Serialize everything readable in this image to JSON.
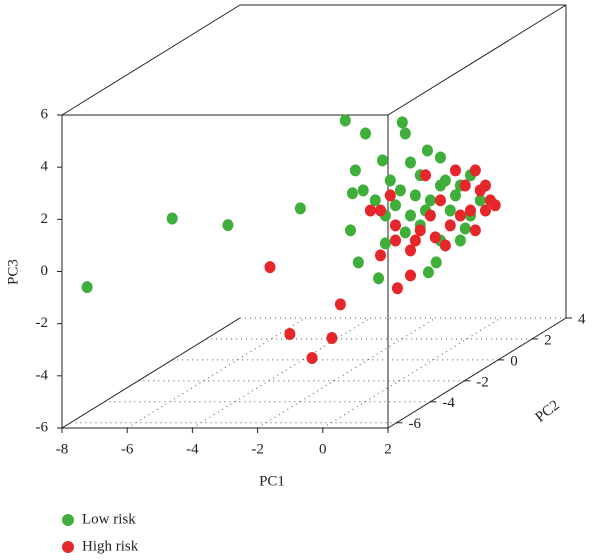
{
  "chart_data": {
    "type": "scatter3d",
    "xlabel": "PC1",
    "ylabel": "PC2",
    "zlabel": "PC3",
    "xlim": [
      -8,
      2
    ],
    "ylim": [
      -6.5,
      4
    ],
    "zlim": [
      -6,
      6
    ],
    "xticks": [
      -8,
      -6,
      -4,
      -2,
      0,
      2
    ],
    "yticks": [
      -6,
      -4,
      -2,
      0,
      2,
      4
    ],
    "zticks": [
      -6,
      -4,
      -2,
      0,
      2,
      4,
      6
    ],
    "series": [
      {
        "name": "Low risk",
        "color": "#3fae3a",
        "x": [
          -2.17,
          -1.55,
          -0.42,
          -0.33,
          -1.86,
          -1.03,
          -0.17,
          0.35,
          0.75,
          -1.62,
          -0.79,
          -1.25,
          -0.48,
          0.13,
          0.44,
          0.9,
          1.21,
          1.67,
          1.97,
          -2.01,
          -0.94,
          -0.33,
          0.13,
          0.75,
          1.36,
          1.67,
          -1.77,
          -1.15,
          0.38,
          0.62,
          -0.02,
          -0.63,
          0.29,
          -0.17,
          1.05,
          0.75,
          1.36,
          -0.94,
          -1.95,
          1.51,
          -3.55,
          -4.73,
          -5.4,
          -8.01
        ],
        "y": [
          -1,
          -1,
          -1,
          -1,
          -1,
          -1,
          -1,
          -1,
          -1,
          -1,
          -1,
          -1,
          -1,
          -1,
          -1,
          -1,
          -1,
          -1,
          -1,
          -1,
          -1,
          -1,
          -1,
          -1,
          -1,
          -1,
          -1,
          -1,
          -1,
          -1,
          -1,
          -1,
          -1,
          -1,
          -1,
          -1,
          -1,
          -1,
          -1,
          -1,
          -1,
          -3,
          -5,
          -5
        ],
        "z": [
          3.58,
          3.08,
          3.51,
          3.08,
          1.67,
          2.05,
          1.97,
          2.43,
          2.16,
          0.9,
          1.28,
          0.52,
          0.9,
          1.48,
          0.52,
          1.28,
          0.71,
          1.48,
          0.52,
          -0.63,
          -1.13,
          -0.71,
          -0.44,
          -1.02,
          -1.02,
          -0.06,
          -1.86,
          -2.47,
          -2.24,
          -1.86,
          0.71,
          0.33,
          0.13,
          -0.06,
          0.13,
          1.09,
          1.09,
          -0.06,
          0.79,
          -0.56,
          0.21,
          0.37,
          1.43,
          -1.2
        ]
      },
      {
        "name": "High risk",
        "color": "#e5262b",
        "x": [
          -3.44,
          -2.32,
          -1.79,
          -0.5,
          -1.11,
          -0.57,
          -0.17,
          -1.09,
          -0.63,
          -0.02,
          0.59,
          -1.09,
          -0.63,
          1.21,
          1.51,
          1.97,
          2.28,
          2.43,
          2.13,
          1.67,
          1.05,
          0.44,
          0.75,
          1.36,
          0.29,
          1.82,
          -0.79,
          -1.4,
          -0.17,
          0.13,
          0.9,
          2.13,
          1.82
        ],
        "y": [
          -3,
          -1,
          -5,
          -5,
          -5,
          -1,
          -1,
          -1,
          -1,
          -1,
          -1,
          -1,
          -1,
          -1,
          -1,
          -1,
          -1,
          -1,
          -1,
          -1,
          -1,
          -1,
          -1,
          -1,
          -1,
          -1,
          -1,
          -1,
          -1,
          -1,
          -1,
          -1,
          -1
        ],
        "z": [
          -1.24,
          -3.47,
          -3.0,
          -3.15,
          -3.92,
          -2.85,
          -2.36,
          -1.59,
          -1.02,
          -1.02,
          -0.9,
          0.13,
          -0.44,
          1.67,
          1.09,
          0.9,
          0.52,
          0.33,
          1.09,
          0.13,
          -0.44,
          -0.06,
          0.52,
          -0.06,
          1.48,
          -0.63,
          0.71,
          0.13,
          -1.4,
          -0.63,
          -1.21,
          0.13,
          1.67
        ]
      }
    ]
  }
}
